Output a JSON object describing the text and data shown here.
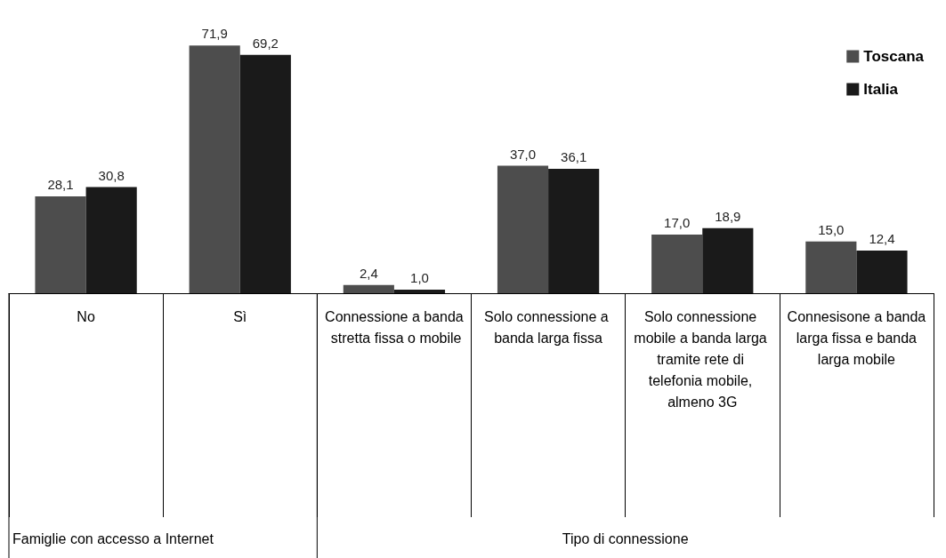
{
  "chart_data": {
    "type": "bar",
    "categories": [
      "No",
      "Sì",
      "Connessione a banda stretta fissa o mobile",
      "Solo connessione a banda larga fissa",
      "Solo connessione mobile a banda larga tramite rete di telefonia mobile, almeno 3G",
      "Connesisone a banda larga fissa e banda larga mobile"
    ],
    "series": [
      {
        "name": "Toscana",
        "color": "#4d4d4d",
        "values": [
          28.1,
          71.9,
          2.4,
          37.0,
          17.0,
          15.0
        ],
        "value_labels": [
          "28,1",
          "71,9",
          "2,4",
          "37,0",
          "17,0",
          "15,0"
        ]
      },
      {
        "name": "Italia",
        "color": "#1a1a1a",
        "values": [
          30.8,
          69.2,
          1.0,
          36.1,
          18.9,
          12.4
        ],
        "value_labels": [
          "30,8",
          "69,2",
          "1,0",
          "36,1",
          "18,9",
          "12,4"
        ]
      }
    ],
    "annotations": [
      "Famiglie con accesso a Internet",
      "Tipo di connessione"
    ],
    "legend": "top right",
    "grid": false
  }
}
